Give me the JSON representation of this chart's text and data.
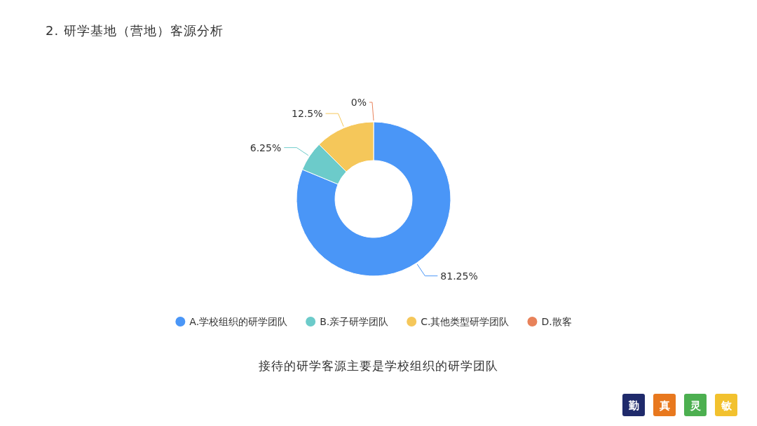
{
  "chart_data": {
    "type": "donut",
    "title": "2. 研学基地（营地）客源分析",
    "categories": [
      "A.学校组织的研学团队",
      "B.亲子研学团队",
      "C.其他类型研学团队",
      "D.散客"
    ],
    "values": [
      81.25,
      6.25,
      12.5,
      0
    ],
    "value_labels": [
      "81.25%",
      "6.25%",
      "12.5%",
      "0%"
    ],
    "colors": [
      "#4a96f7",
      "#6ccbca",
      "#f5c75a",
      "#e8825a"
    ],
    "legend": "bottom",
    "annotations": [
      "接待的研学客源主要是学校组织的研学团队",
      "勤",
      "真",
      "灵",
      "敏"
    ]
  }
}
